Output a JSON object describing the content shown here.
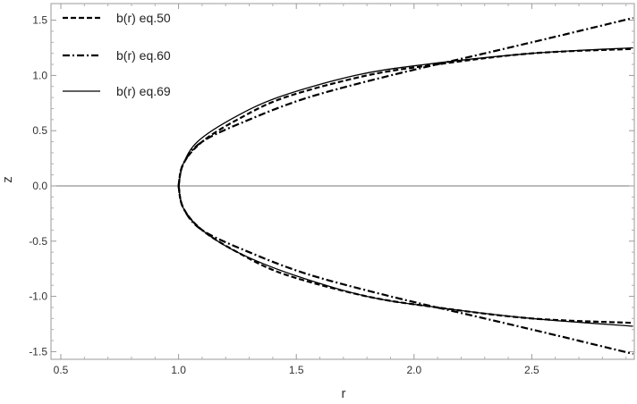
{
  "chart_data": {
    "type": "line",
    "title": "",
    "xlabel": "r",
    "ylabel": "z",
    "xlim": [
      0.48,
      2.97
    ],
    "ylim": [
      -1.57,
      1.67
    ],
    "x_ticks": [
      "0.5",
      "1.0",
      "1.5",
      "2.0",
      "2.5"
    ],
    "y_ticks": [
      "-1.5",
      "-1.0",
      "-0.5",
      "0.0",
      "0.5",
      "1.0",
      "1.5"
    ],
    "grid": false,
    "legend_position": "top-left",
    "series": [
      {
        "name": "b(r) eq.50",
        "style": "dashed",
        "color": "#000000",
        "points_upper": [
          [
            1.0,
            0.0
          ],
          [
            1.02,
            0.2
          ],
          [
            1.1,
            0.4
          ],
          [
            1.25,
            0.6
          ],
          [
            1.45,
            0.8
          ],
          [
            1.8,
            1.0
          ],
          [
            2.1,
            1.1
          ],
          [
            2.5,
            1.2
          ],
          [
            2.93,
            1.24
          ]
        ],
        "points_lower": [
          [
            1.0,
            0.0
          ],
          [
            1.02,
            -0.2
          ],
          [
            1.1,
            -0.4
          ],
          [
            1.25,
            -0.6
          ],
          [
            1.45,
            -0.8
          ],
          [
            1.8,
            -1.0
          ],
          [
            2.1,
            -1.1
          ],
          [
            2.5,
            -1.2
          ],
          [
            2.93,
            -1.24
          ]
        ]
      },
      {
        "name": "b(r) eq.60",
        "style": "dashdot",
        "color": "#000000",
        "points_upper": [
          [
            1.0,
            0.0
          ],
          [
            1.02,
            0.2
          ],
          [
            1.1,
            0.4
          ],
          [
            1.3,
            0.6
          ],
          [
            1.55,
            0.8
          ],
          [
            1.9,
            1.0
          ],
          [
            2.3,
            1.2
          ],
          [
            2.6,
            1.35
          ],
          [
            2.93,
            1.52
          ]
        ],
        "points_lower": [
          [
            1.0,
            0.0
          ],
          [
            1.02,
            -0.2
          ],
          [
            1.1,
            -0.4
          ],
          [
            1.3,
            -0.6
          ],
          [
            1.55,
            -0.8
          ],
          [
            1.9,
            -1.0
          ],
          [
            2.3,
            -1.2
          ],
          [
            2.6,
            -1.35
          ],
          [
            2.93,
            -1.52
          ]
        ]
      },
      {
        "name": "b(r) eq.69",
        "style": "solid",
        "color": "#000000",
        "points_upper": [
          [
            1.0,
            0.0
          ],
          [
            1.02,
            0.2
          ],
          [
            1.08,
            0.4
          ],
          [
            1.22,
            0.6
          ],
          [
            1.42,
            0.8
          ],
          [
            1.75,
            1.0
          ],
          [
            2.05,
            1.1
          ],
          [
            2.5,
            1.2
          ],
          [
            2.93,
            1.25
          ]
        ],
        "points_lower": [
          [
            1.0,
            0.0
          ],
          [
            1.02,
            -0.2
          ],
          [
            1.1,
            -0.4
          ],
          [
            1.25,
            -0.6
          ],
          [
            1.48,
            -0.8
          ],
          [
            1.8,
            -1.0
          ],
          [
            2.1,
            -1.1
          ],
          [
            2.5,
            -1.2
          ],
          [
            2.93,
            -1.27
          ]
        ]
      }
    ]
  }
}
